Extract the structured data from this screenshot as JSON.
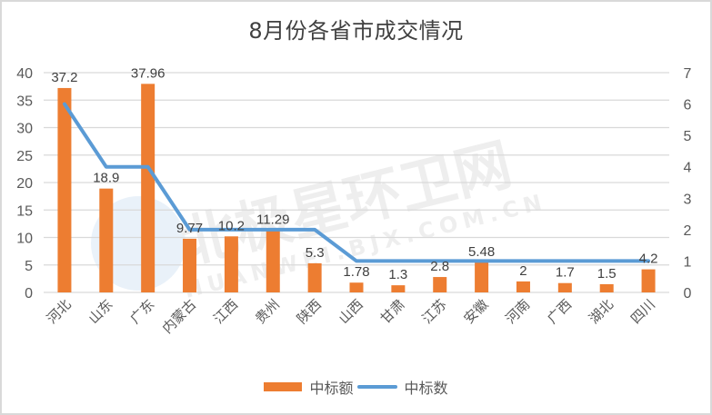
{
  "chart_data": {
    "type": "bar+line",
    "title": "8月份各省市成交情况",
    "categories": [
      "河北",
      "山东",
      "广东",
      "内蒙古",
      "江西",
      "贵州",
      "陕西",
      "山西",
      "甘肃",
      "江苏",
      "安徽",
      "河南",
      "广西",
      "湖北",
      "四川"
    ],
    "series": [
      {
        "name": "中标额",
        "type": "bar",
        "axis": "left",
        "color": "#ed7d31",
        "values": [
          37.2,
          18.9,
          37.96,
          9.77,
          10.2,
          11.29,
          5.3,
          1.78,
          1.3,
          2.8,
          5.48,
          2,
          1.7,
          1.5,
          4.2
        ],
        "labels": [
          "37.2",
          "18.9",
          "37.96",
          "9.77",
          "10.2",
          "11.29",
          "5.3",
          "1.78",
          "1.3",
          "2.8",
          "5.48",
          "2",
          "1.7",
          "1.5",
          "4.2"
        ]
      },
      {
        "name": "中标数",
        "type": "line",
        "axis": "right",
        "color": "#5b9bd5",
        "values": [
          6,
          4,
          4,
          2,
          2,
          2,
          2,
          1,
          1,
          1,
          1,
          1,
          1,
          1,
          1
        ]
      }
    ],
    "left_axis": {
      "min": 0,
      "max": 40,
      "step": 5,
      "ticks": [
        "0",
        "5",
        "10",
        "15",
        "20",
        "25",
        "30",
        "35",
        "40"
      ]
    },
    "right_axis": {
      "min": 0,
      "max": 7,
      "step": 1,
      "ticks": [
        "0",
        "1",
        "2",
        "3",
        "4",
        "5",
        "6",
        "7"
      ]
    },
    "grid": true,
    "legend_position": "bottom"
  },
  "watermark": {
    "main": "北极星环卫网",
    "sub": "HUANWEI.BJX.COM.CN"
  }
}
